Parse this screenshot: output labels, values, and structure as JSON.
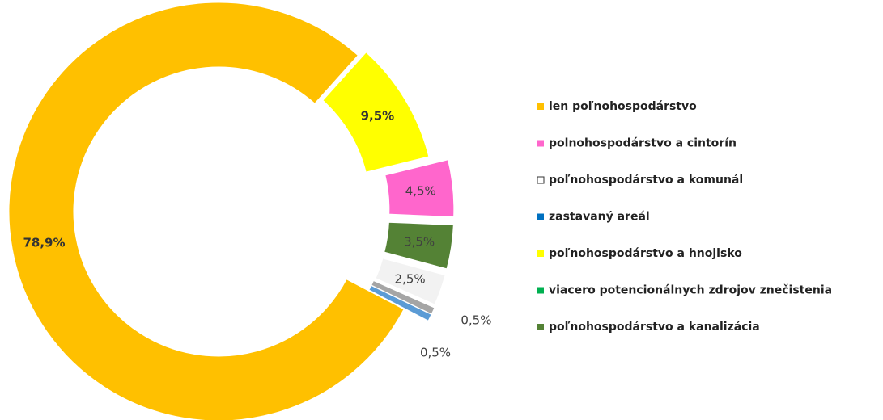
{
  "chart_data": {
    "type": "donut",
    "categories": [
      "len poľnohospodárstvo",
      "polnohospodárstvo a cintorín",
      "poľnohospodárstvo a komunál",
      "zastavaný areál",
      "poľnohospodárstvo a hnojisko",
      "viacero potencionálnych zdrojov znečistenia",
      "poľnohospodárstvo a kanalizácia"
    ],
    "values": [
      78.9,
      4.5,
      2.5,
      0.5,
      9.5,
      0.5,
      3.5
    ],
    "value_labels": [
      "78,9%",
      "4,5%",
      "2,5%",
      "0,5%",
      "9,5%",
      "0,5%",
      "3,5%"
    ],
    "colors": [
      "#ffc000",
      "#ff66cc",
      "#f2f2f2",
      "#5b9bd5",
      "#ffff00",
      "#a5a5a5",
      "#548235"
    ],
    "legend_colors": [
      "#ffc000",
      "#ff66cc",
      "#ffffff",
      "#0070c0",
      "#ffff00",
      "#00b050",
      "#548235"
    ],
    "slice_order": [
      0,
      4,
      1,
      6,
      2,
      5,
      3
    ],
    "legend": "right"
  }
}
